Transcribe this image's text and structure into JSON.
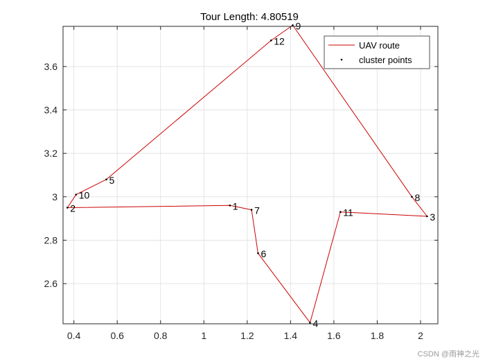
{
  "chart_data": {
    "type": "line",
    "title": "Tour Length: 4.80519",
    "xlabel": "",
    "ylabel": "",
    "xlim": [
      0.35,
      2.08
    ],
    "ylim": [
      2.415,
      3.785
    ],
    "xticks": [
      0.4,
      0.6,
      0.8,
      1,
      1.2,
      1.4,
      1.6,
      1.8,
      2
    ],
    "yticks": [
      2.6,
      2.8,
      3,
      3.2,
      3.4,
      3.6
    ],
    "xtick_labels": [
      "0.4",
      "0.6",
      "0.8",
      "1",
      "1.2",
      "1.4",
      "1.6",
      "1.8",
      "2"
    ],
    "ytick_labels": [
      "2.6",
      "2.8",
      "3",
      "3.2",
      "3.4",
      "3.6"
    ],
    "grid": true,
    "legend_position": "top-right",
    "points": [
      {
        "label": "1",
        "x": 1.12,
        "y": 2.96
      },
      {
        "label": "2",
        "x": 0.37,
        "y": 2.95
      },
      {
        "label": "3",
        "x": 2.03,
        "y": 2.91
      },
      {
        "label": "4",
        "x": 1.49,
        "y": 2.42
      },
      {
        "label": "5",
        "x": 0.55,
        "y": 3.08
      },
      {
        "label": "6",
        "x": 1.25,
        "y": 2.74
      },
      {
        "label": "7",
        "x": 1.22,
        "y": 2.94
      },
      {
        "label": "8",
        "x": 1.96,
        "y": 3.0
      },
      {
        "label": "9",
        "x": 1.41,
        "y": 3.79
      },
      {
        "label": "10",
        "x": 0.41,
        "y": 3.01
      },
      {
        "label": "11",
        "x": 1.63,
        "y": 2.93
      },
      {
        "label": "12",
        "x": 1.31,
        "y": 3.72
      }
    ],
    "route_order": [
      "2",
      "1",
      "7",
      "6",
      "4",
      "11",
      "3",
      "8",
      "9",
      "12",
      "5",
      "10",
      "2"
    ],
    "series": [
      {
        "name": "UAV route",
        "color": "#cc0000",
        "style": "line"
      },
      {
        "name": "cluster points",
        "color": "#000000",
        "style": "marker"
      }
    ]
  },
  "watermark": "CSDN @雨神之光"
}
